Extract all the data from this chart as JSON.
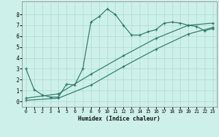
{
  "xlabel": "Humidex (Indice chaleur)",
  "xlim": [
    -0.5,
    23.5
  ],
  "ylim": [
    -0.5,
    9.2
  ],
  "line_color": "#2d7a6a",
  "bg_color": "#cef0ea",
  "grid_color": "#b0ddd6",
  "series1_x": [
    0,
    1,
    2,
    3,
    4,
    5,
    6,
    7,
    8,
    9,
    10,
    11,
    12,
    13,
    14,
    15,
    16,
    17,
    18,
    19,
    20,
    21,
    22,
    23
  ],
  "series1_y": [
    3.0,
    1.1,
    0.6,
    0.4,
    0.4,
    1.6,
    1.5,
    3.0,
    7.3,
    7.8,
    8.5,
    8.0,
    7.0,
    6.1,
    6.1,
    6.4,
    6.6,
    7.2,
    7.3,
    7.2,
    7.0,
    6.9,
    6.5,
    6.7
  ],
  "series2_x": [
    0,
    4,
    8,
    12,
    16,
    20,
    23
  ],
  "series2_y": [
    0.1,
    0.3,
    1.5,
    3.2,
    4.8,
    6.2,
    6.8
  ],
  "series3_x": [
    0,
    4,
    8,
    12,
    16,
    20,
    23
  ],
  "series3_y": [
    0.3,
    0.7,
    2.5,
    4.2,
    5.8,
    7.0,
    7.2
  ],
  "yticks": [
    0,
    1,
    2,
    3,
    4,
    5,
    6,
    7,
    8
  ],
  "xticks": [
    0,
    1,
    2,
    3,
    4,
    5,
    6,
    7,
    8,
    9,
    10,
    11,
    12,
    13,
    14,
    15,
    16,
    17,
    18,
    19,
    20,
    21,
    22,
    23
  ]
}
